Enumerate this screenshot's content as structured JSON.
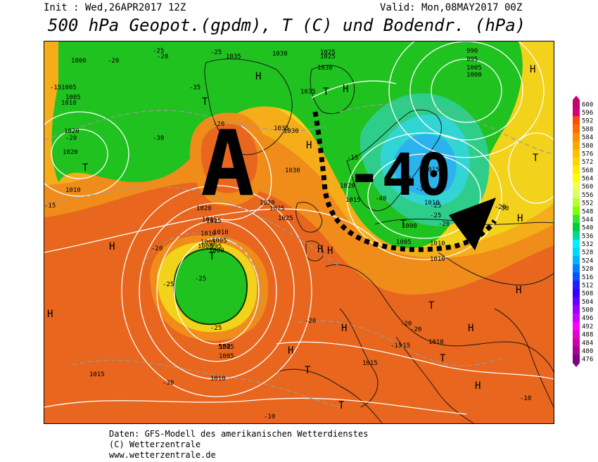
{
  "header": {
    "init": "Init : Wed,26APR2017 12Z",
    "valid": "Valid: Mon,08MAY2017 00Z",
    "title": "500 hPa Geopot.(gpdm), T (C) und Bodendr. (hPa)"
  },
  "annotation": {
    "big_letter": "A",
    "big_value": "-40"
  },
  "map": {
    "pressure_labels": [
      "1000",
      "1035",
      "1030",
      "1025",
      "1005",
      "1010",
      "995",
      "1005",
      "1000",
      "990",
      "1020",
      "1015",
      "1030",
      "1025",
      "1010",
      "1020",
      "1015",
      "1005",
      "1000",
      "1015",
      "1005",
      "1010",
      "1000",
      "1005",
      "1010",
      "1010",
      "1015",
      "1010",
      "1005",
      "1010",
      "1005",
      "1015",
      "1020",
      "1020",
      "1010",
      "1005",
      "1025",
      "1030",
      "1035",
      "1035",
      "1030",
      "1025",
      "1020",
      "1015",
      "1010",
      "1005",
      "1000",
      "995"
    ],
    "temp_labels": [
      "-20",
      "-25",
      "-15",
      "-20",
      "-20",
      "-15",
      "-25",
      "-20",
      "-30",
      "-25",
      "-20",
      "-30",
      "-35",
      "-40",
      "-35",
      "-30",
      "-25",
      "-20",
      "-15",
      "-25",
      "-20",
      "-25",
      "-15",
      "-20",
      "-15",
      "-10",
      "-10",
      "-30",
      "-20",
      "-20",
      "-25"
    ],
    "high_symbols": [
      "H",
      "H",
      "H",
      "H",
      "H",
      "H",
      "H",
      "H",
      "H",
      "H",
      "H",
      "H",
      "H",
      "H"
    ],
    "low_symbols": [
      "T",
      "T",
      "T",
      "T",
      "T",
      "T",
      "T",
      "T",
      "T",
      "T"
    ],
    "inline_value": "552"
  },
  "scale": {
    "labels": [
      "600",
      "596",
      "592",
      "588",
      "584",
      "580",
      "576",
      "572",
      "568",
      "564",
      "560",
      "556",
      "552",
      "548",
      "544",
      "540",
      "536",
      "532",
      "528",
      "524",
      "520",
      "516",
      "512",
      "508",
      "504",
      "500",
      "496",
      "492",
      "488",
      "484",
      "480",
      "476"
    ],
    "colors": [
      "#c4006e",
      "#d6007a",
      "#ff4d00",
      "#ff6a00",
      "#ff8c00",
      "#ffa500",
      "#ffbf00",
      "#ffd700",
      "#ffea00",
      "#ffff00",
      "#f0ff5a",
      "#d9ff66",
      "#b3ff33",
      "#80ff00",
      "#33e633",
      "#00cc33",
      "#00d99a",
      "#00f0ff",
      "#00d9ff",
      "#00b3ff",
      "#0080ff",
      "#0055ff",
      "#1e1eff",
      "#3300ff",
      "#6600ff",
      "#9900ff",
      "#cc00ff",
      "#ff00ff",
      "#e600cc",
      "#cc00aa",
      "#a80096",
      "#800080"
    ]
  },
  "footer": {
    "line1": "Daten: GFS-Modell des amerikanischen Wetterdienstes",
    "line2": "(C) Wetterzentrale",
    "line3": "www.wetterzentrale.de"
  }
}
